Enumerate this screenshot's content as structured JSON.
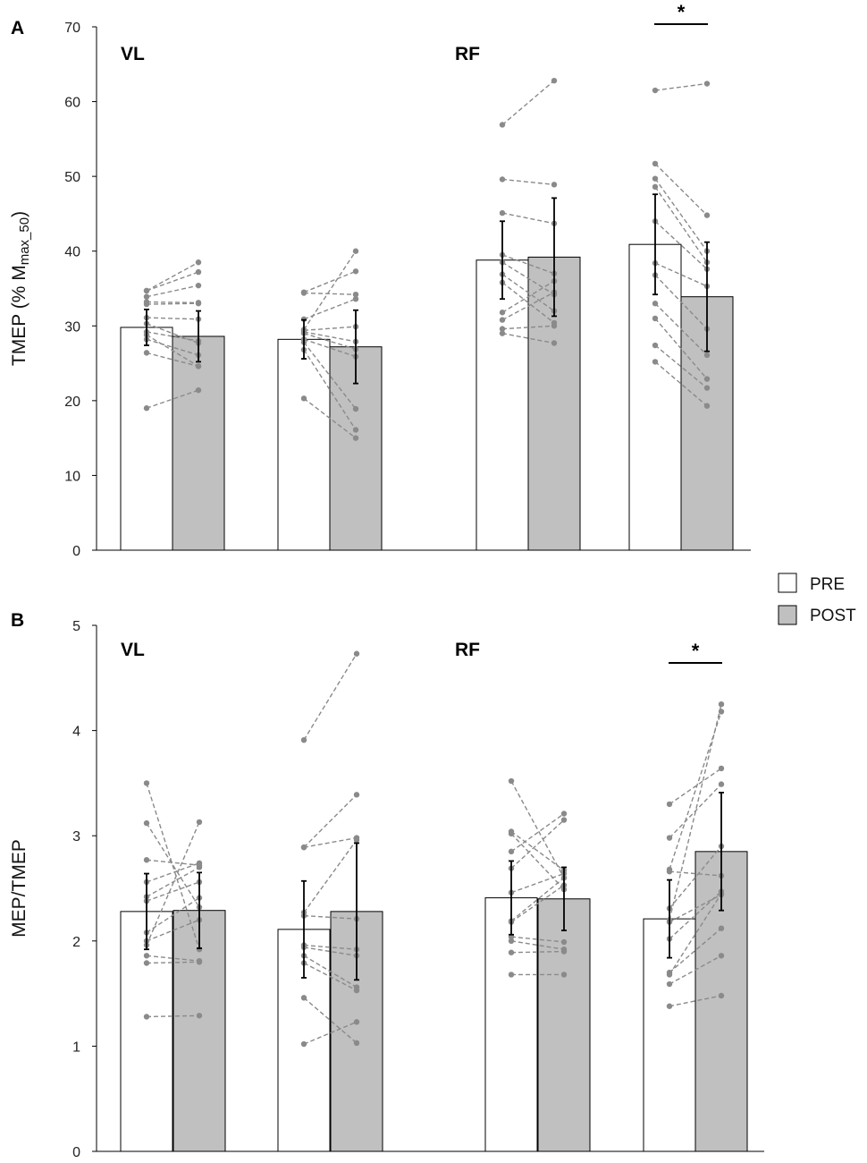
{
  "colors": {
    "pre": "#ffffff",
    "post": "#c0c0c0",
    "individual": "#8a8a8a",
    "axis": "#000000",
    "errorbar": "#000000"
  },
  "legend": {
    "pre": "PRE",
    "post": "POST"
  },
  "chart_data": [
    {
      "type": "bar",
      "panel": "A",
      "ylabel_main": "TMEP (% M",
      "ylabel_sub": "max_50",
      "ylabel_end": ")",
      "ylim": [
        0,
        70
      ],
      "yticks": [
        "0",
        "10",
        "20",
        "30",
        "40",
        "50",
        "60",
        "70"
      ],
      "group_labels": [
        "VL",
        "RF"
      ],
      "series": [
        {
          "name": "PRE"
        },
        {
          "name": "POST"
        }
      ],
      "pairs": [
        {
          "pre": 29.8,
          "post": 28.6,
          "pre_err": 2.4,
          "post_err": 3.4,
          "individuals": [
            [
              19.0,
              21.4
            ],
            [
              26.4,
              24.6
            ],
            [
              28.2,
              26.1
            ],
            [
              28.8,
              24.6
            ],
            [
              29.2,
              28.0
            ],
            [
              30.3,
              27.7
            ],
            [
              31.1,
              30.9
            ],
            [
              32.9,
              33.0
            ],
            [
              33.2,
              33.1
            ],
            [
              33.9,
              35.4
            ],
            [
              34.7,
              37.2
            ],
            [
              34.7,
              38.5
            ]
          ],
          "sig": ""
        },
        {
          "pre": 28.2,
          "post": 27.2,
          "pre_err": 2.6,
          "post_err": 4.9,
          "individuals": [
            [
              20.3,
              15.0
            ],
            [
              26.8,
              16.1
            ],
            [
              27.8,
              18.9
            ],
            [
              28.2,
              25.9
            ],
            [
              29.0,
              26.9
            ],
            [
              29.2,
              27.9
            ],
            [
              29.4,
              29.9
            ],
            [
              30.9,
              33.6
            ],
            [
              34.4,
              34.2
            ],
            [
              34.5,
              37.3
            ],
            [
              29.5,
              40.0
            ]
          ],
          "sig": ""
        },
        {
          "pre": 38.8,
          "post": 39.2,
          "pre_err": 5.2,
          "post_err": 7.9,
          "individuals": [
            [
              29.0,
              27.7
            ],
            [
              29.6,
              30.0
            ],
            [
              30.8,
              34.5
            ],
            [
              31.8,
              36.0
            ],
            [
              35.8,
              30.4
            ],
            [
              36.9,
              32.0
            ],
            [
              38.5,
              34.2
            ],
            [
              39.5,
              37.0
            ],
            [
              45.1,
              43.7
            ],
            [
              49.6,
              48.9
            ],
            [
              56.9,
              62.8
            ]
          ],
          "sig": ""
        },
        {
          "pre": 40.9,
          "post": 33.9,
          "pre_err": 6.7,
          "post_err": 7.3,
          "individuals": [
            [
              25.2,
              19.3
            ],
            [
              27.4,
              21.7
            ],
            [
              31.0,
              22.9
            ],
            [
              33.0,
              26.1
            ],
            [
              36.8,
              29.6
            ],
            [
              38.4,
              35.3
            ],
            [
              44.0,
              37.6
            ],
            [
              48.6,
              38.5
            ],
            [
              49.7,
              40.0
            ],
            [
              51.7,
              44.8
            ],
            [
              61.5,
              62.4
            ]
          ],
          "sig": "*"
        }
      ]
    },
    {
      "type": "bar",
      "panel": "B",
      "ylabel_main": "MEP/TMEP",
      "ylabel_sub": "",
      "ylabel_end": "",
      "ylim": [
        0,
        5
      ],
      "yticks": [
        "0",
        "1",
        "2",
        "3",
        "4",
        "5"
      ],
      "group_labels": [
        "VL",
        "RF"
      ],
      "series": [
        {
          "name": "PRE"
        },
        {
          "name": "POST"
        }
      ],
      "pairs": [
        {
          "pre": 2.28,
          "post": 2.29,
          "pre_err": 0.36,
          "post_err": 0.36,
          "individuals": [
            [
              1.28,
              1.29
            ],
            [
              1.79,
              1.8
            ],
            [
              1.86,
              1.81
            ],
            [
              2.0,
              2.2
            ],
            [
              2.08,
              2.41
            ],
            [
              2.38,
              2.56
            ],
            [
              2.42,
              2.7
            ],
            [
              2.56,
              2.74
            ],
            [
              2.77,
              2.72
            ],
            [
              3.12,
              2.32
            ],
            [
              3.5,
              1.92
            ],
            [
              1.96,
              3.13
            ]
          ],
          "sig": ""
        },
        {
          "pre": 2.11,
          "post": 2.28,
          "pre_err": 0.46,
          "post_err": 0.65,
          "individuals": [
            [
              1.02,
              1.23
            ],
            [
              1.46,
              1.03
            ],
            [
              1.79,
              1.53
            ],
            [
              1.86,
              1.56
            ],
            [
              1.94,
              1.86
            ],
            [
              1.96,
              1.92
            ],
            [
              2.24,
              2.21
            ],
            [
              2.27,
              2.96
            ],
            [
              2.89,
              3.39
            ],
            [
              2.89,
              2.98
            ],
            [
              3.91,
              4.73
            ]
          ],
          "sig": ""
        },
        {
          "pre": 2.41,
          "post": 2.4,
          "pre_err": 0.35,
          "post_err": 0.3,
          "individuals": [
            [
              1.68,
              1.68
            ],
            [
              1.89,
              1.9
            ],
            [
              2.0,
              1.92
            ],
            [
              2.04,
              1.99
            ],
            [
              2.18,
              2.53
            ],
            [
              2.19,
              2.6
            ],
            [
              2.46,
              2.64
            ],
            [
              2.69,
              3.15
            ],
            [
              2.85,
              3.21
            ],
            [
              3.02,
              2.49
            ],
            [
              3.04,
              2.67
            ],
            [
              3.52,
              2.6
            ]
          ],
          "sig": ""
        },
        {
          "pre": 2.21,
          "post": 2.85,
          "pre_err": 0.37,
          "post_err": 0.56,
          "individuals": [
            [
              1.38,
              1.48
            ],
            [
              1.59,
              1.86
            ],
            [
              1.68,
              2.45
            ],
            [
              1.7,
              2.12
            ],
            [
              2.02,
              2.47
            ],
            [
              2.18,
              2.44
            ],
            [
              2.31,
              2.9
            ],
            [
              2.66,
              2.62
            ],
            [
              2.68,
              4.18
            ],
            [
              2.98,
              3.49
            ],
            [
              3.3,
              3.64
            ],
            [
              2.2,
              4.25
            ]
          ],
          "sig": "*"
        }
      ]
    }
  ]
}
